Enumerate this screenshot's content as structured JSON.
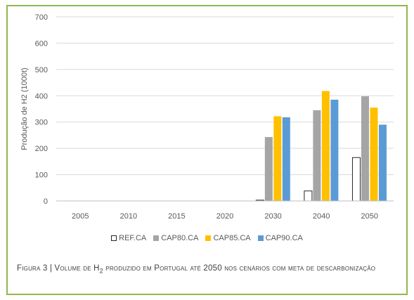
{
  "chart_data": {
    "type": "bar",
    "categories": [
      "2005",
      "2010",
      "2015",
      "2020",
      "2030",
      "2040",
      "2050"
    ],
    "series": [
      {
        "name": "REF.CA",
        "values": [
          0,
          0,
          0,
          0,
          3,
          38,
          165
        ]
      },
      {
        "name": "CAP80.CA",
        "values": [
          0,
          0,
          0,
          0,
          243,
          345,
          398
        ]
      },
      {
        "name": "CAP85.CA",
        "values": [
          0,
          0,
          0,
          0,
          322,
          418,
          355
        ]
      },
      {
        "name": "CAP90.CA",
        "values": [
          0,
          0,
          0,
          0,
          318,
          385,
          290
        ]
      }
    ],
    "colors": [
      "#ffffff",
      "#a5a5a5",
      "#ffc000",
      "#5b9bd5"
    ],
    "ylabel": "Produção de H2 (1000t)",
    "xlabel": "",
    "ylim": [
      0,
      700
    ],
    "yticks": [
      0,
      100,
      200,
      300,
      400,
      500,
      600,
      700
    ],
    "grid": true,
    "legend": "bottom"
  },
  "caption": {
    "prefix": "Figura 3 | Volume de H",
    "subscript": "2",
    "suffix": " produzido  em Portugal até 2050 nos cenários com meta de descarbonização"
  }
}
